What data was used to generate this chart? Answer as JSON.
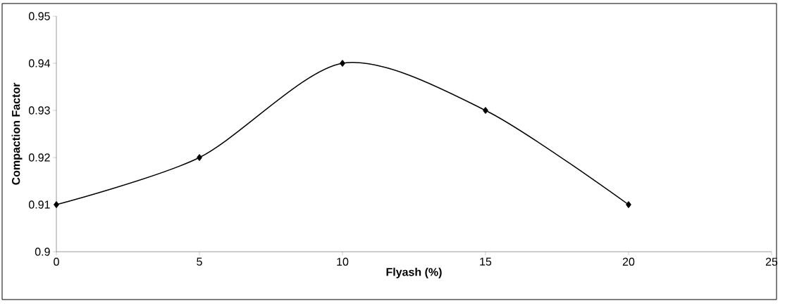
{
  "chart_data": {
    "type": "line",
    "xlabel": "Flyash (%)",
    "ylabel": "Compaction Factor",
    "x": [
      0,
      5,
      10,
      15,
      20
    ],
    "values": [
      0.91,
      0.92,
      0.94,
      0.93,
      0.91
    ],
    "color": "#000000",
    "marker": "diamond",
    "line_style": "solid",
    "xlim": [
      0,
      25
    ],
    "ylim": [
      0.9,
      0.95
    ],
    "xticks": [
      0,
      5,
      10,
      15,
      20,
      25
    ],
    "yticks": [
      0.9,
      0.91,
      0.92,
      0.93,
      0.94,
      0.95
    ]
  }
}
